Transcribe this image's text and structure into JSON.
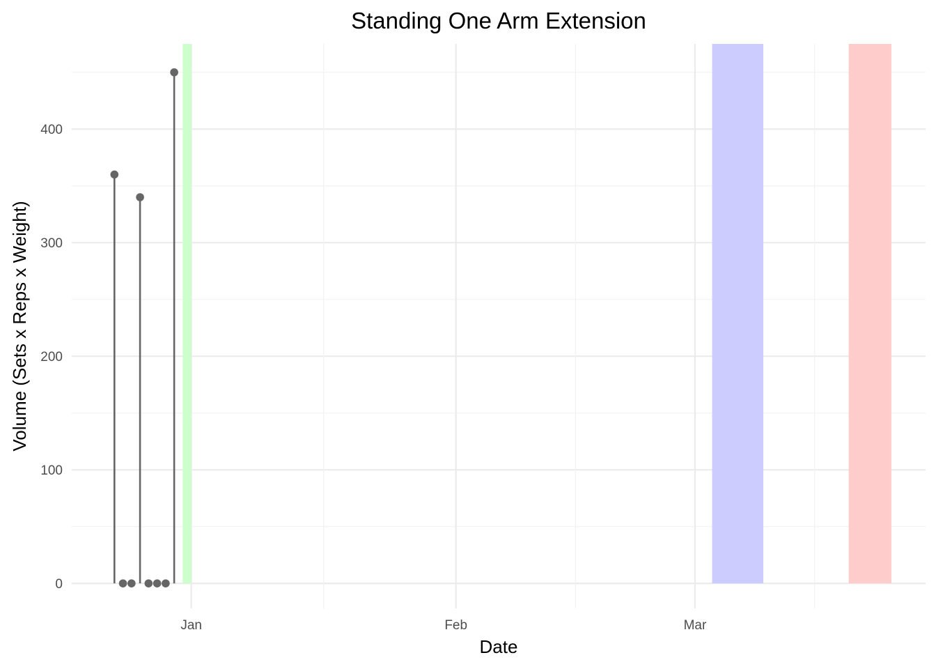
{
  "chart_data": {
    "type": "lollipop",
    "title": "Standing One Arm Extension",
    "xlabel": "Date",
    "ylabel": "Volume (Sets x Reps x Weight)",
    "x_ticks": [
      {
        "date": "2025-01-01",
        "label": "Jan"
      },
      {
        "date": "2025-02-01",
        "label": "Feb"
      },
      {
        "date": "2025-03-01",
        "label": "Mar"
      }
    ],
    "y_ticks": [
      0,
      100,
      200,
      300,
      400
    ],
    "xlim": [
      "2024-12-18",
      "2025-03-28"
    ],
    "ylim": [
      -22,
      475
    ],
    "grid": true,
    "points": [
      {
        "x": "2024-12-23",
        "y": 360
      },
      {
        "x": "2024-12-24",
        "y": 0
      },
      {
        "x": "2024-12-25",
        "y": 0
      },
      {
        "x": "2024-12-26",
        "y": 340
      },
      {
        "x": "2024-12-27",
        "y": 0
      },
      {
        "x": "2024-12-28",
        "y": 0
      },
      {
        "x": "2024-12-29",
        "y": 0
      },
      {
        "x": "2024-12-30",
        "y": 450
      }
    ],
    "shaded_ranges": [
      {
        "start": "2024-12-31",
        "end": "2025-01-01",
        "color": "#ccffcc"
      },
      {
        "start": "2025-03-03",
        "end": "2025-03-09",
        "color": "#ccccff"
      },
      {
        "start": "2025-03-19",
        "end": "2025-03-24",
        "color": "#ffcccc"
      }
    ],
    "point_color": "#666666"
  }
}
